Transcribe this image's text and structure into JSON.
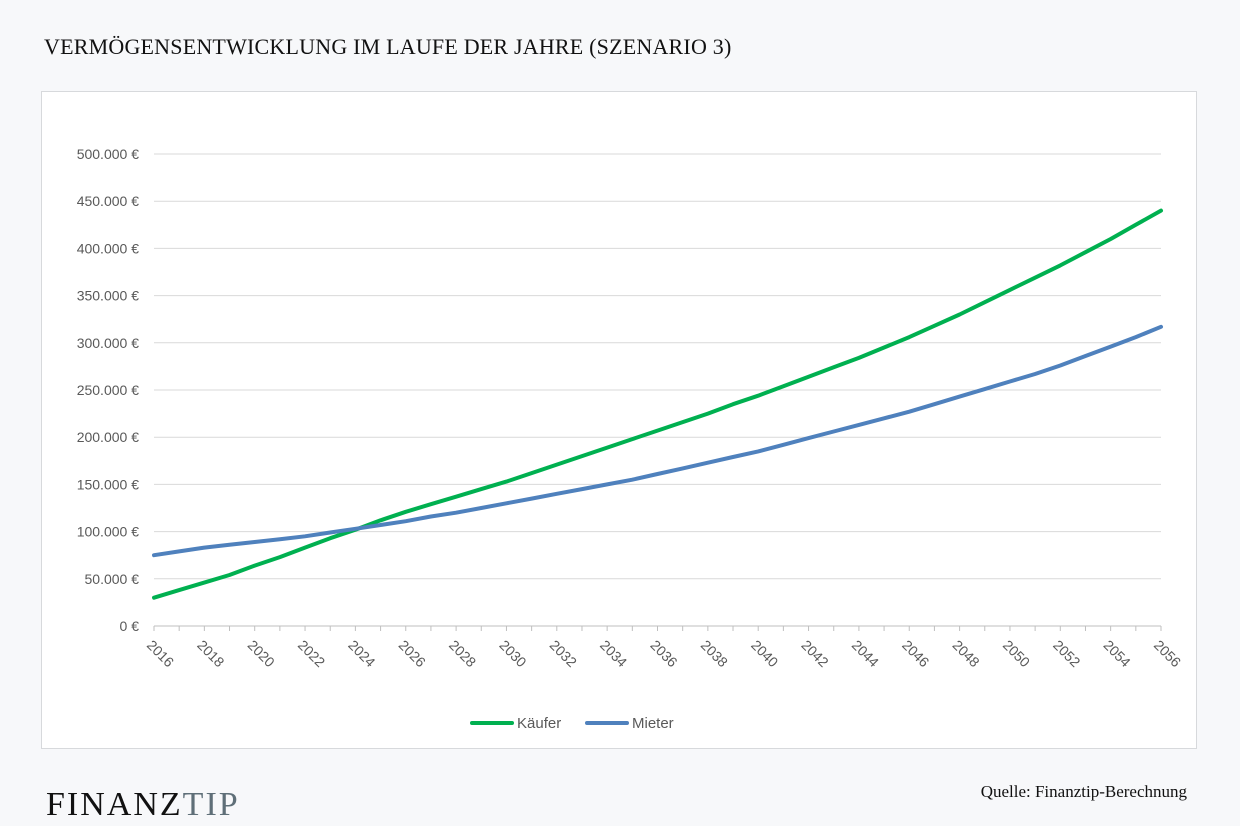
{
  "page": {
    "title": "VERMÖGENSENTWICKLUNG IM LAUFE DER JAHRE (SZENARIO 3)",
    "source": "Quelle:  Finanztip-Berechnung",
    "logo_part1": "FINANZ",
    "logo_part2": "TIP"
  },
  "chart_data": {
    "type": "line",
    "title": "",
    "xlabel": "",
    "ylabel": "",
    "ylim": [
      0,
      500000
    ],
    "yticks": [
      0,
      50000,
      100000,
      150000,
      200000,
      250000,
      300000,
      350000,
      400000,
      450000,
      500000
    ],
    "ytick_labels": [
      "0 €",
      "50.000 €",
      "100.000 €",
      "150.000 €",
      "200.000 €",
      "250.000 €",
      "300.000 €",
      "350.000 €",
      "400.000 €",
      "450.000 €",
      "500.000 €"
    ],
    "x": [
      2016,
      2017,
      2018,
      2019,
      2020,
      2021,
      2022,
      2023,
      2024,
      2025,
      2026,
      2027,
      2028,
      2029,
      2030,
      2031,
      2032,
      2033,
      2034,
      2035,
      2036,
      2037,
      2038,
      2039,
      2040,
      2041,
      2042,
      2043,
      2044,
      2045,
      2046,
      2047,
      2048,
      2049,
      2050,
      2051,
      2052,
      2053,
      2054,
      2055,
      2056
    ],
    "xtick_labels": [
      "2016",
      "2018",
      "2020",
      "2022",
      "2024",
      "2026",
      "2028",
      "2030",
      "2032",
      "2034",
      "2036",
      "2038",
      "2040",
      "2042",
      "2044",
      "2046",
      "2048",
      "2050",
      "2052",
      "2054",
      "2056"
    ],
    "grid": true,
    "legend_position": "bottom",
    "series": [
      {
        "name": "Käufer",
        "color": "#00b050",
        "values": [
          30000,
          38000,
          46000,
          54000,
          64000,
          73000,
          83000,
          93000,
          102000,
          112000,
          121000,
          129000,
          137000,
          145000,
          153000,
          162000,
          171000,
          180000,
          189000,
          198000,
          207000,
          216000,
          225000,
          235000,
          244000,
          254000,
          264000,
          274000,
          284000,
          295000,
          306000,
          318000,
          330000,
          343000,
          356000,
          369000,
          382000,
          396000,
          410000,
          425000,
          440000
        ]
      },
      {
        "name": "Mieter",
        "color": "#4f81bd",
        "values": [
          75000,
          79000,
          83000,
          86000,
          89000,
          92000,
          95000,
          99000,
          103000,
          107000,
          111000,
          116000,
          120000,
          125000,
          130000,
          135000,
          140000,
          145000,
          150000,
          155000,
          161000,
          167000,
          173000,
          179000,
          185000,
          192000,
          199000,
          206000,
          213000,
          220000,
          227000,
          235000,
          243000,
          251000,
          259000,
          267000,
          276000,
          286000,
          296000,
          306000,
          317000
        ]
      }
    ]
  }
}
